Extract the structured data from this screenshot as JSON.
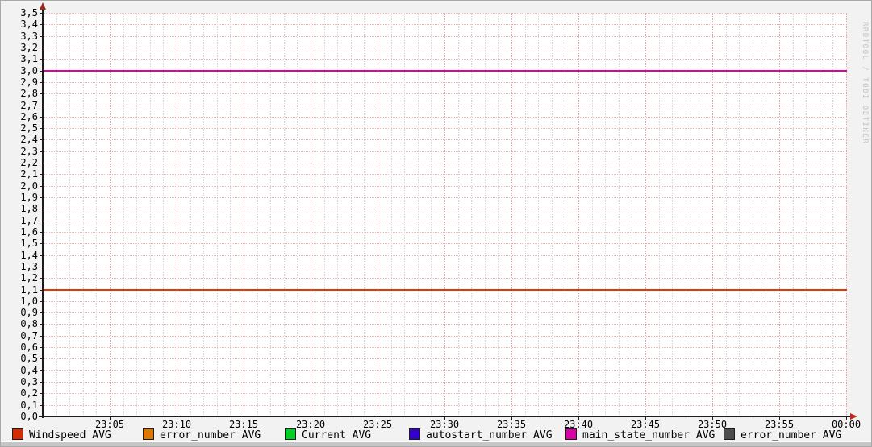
{
  "watermark": "RRDTOOL / TOBI OETIKER",
  "colors": {
    "background": "#f2f2f2",
    "plot_background": "#ffffff",
    "axis": "#1c1c1c",
    "h_grid": "#f0b2b2",
    "v_grid_minor": "#d6d6d6",
    "v_grid_major": "#efa6a6",
    "arrow": "#9e2a1c"
  },
  "chart_data": {
    "type": "line",
    "title": "",
    "xlabel": "",
    "ylabel": "",
    "grid": true,
    "legend_position": "bottom",
    "ylim": [
      0.0,
      3.5
    ],
    "y_tick_step": 0.1,
    "y_tick_labels": [
      "3,5",
      "3,4",
      "3,3",
      "3,2",
      "3,1",
      "3,0",
      "2,9",
      "2,8",
      "2,7",
      "2,6",
      "2,5",
      "2,4",
      "2,3",
      "2,2",
      "2,1",
      "2,0",
      "1,9",
      "1,8",
      "1,7",
      "1,6",
      "1,5",
      "1,4",
      "1,3",
      "1,2",
      "1,1",
      "1,0",
      "0,9",
      "0,8",
      "0,7",
      "0,6",
      "0,5",
      "0,4",
      "0,3",
      "0,2",
      "0,1",
      "0,0"
    ],
    "x_range_minutes": 60,
    "x_minor_every_min": 1,
    "x_major_every_min": 5,
    "x_tick_labels": [
      "23:05",
      "23:10",
      "23:15",
      "23:20",
      "23:25",
      "23:30",
      "23:35",
      "23:40",
      "23:45",
      "23:50",
      "23:55",
      "00:00"
    ],
    "visible_lines": [
      {
        "name": "main_state_number AVG",
        "value": 3.0,
        "color": "#e100a0"
      },
      {
        "name": "error_number AVG",
        "value": 1.1,
        "color": "#dd3c00"
      }
    ],
    "series": [
      {
        "name": "Windspeed AVG",
        "legend_color": "#d52b00",
        "visible_constant_value": null
      },
      {
        "name": "error_number AVG",
        "legend_color": "#e07800",
        "visible_constant_value": 1.1
      },
      {
        "name": "Current AVG",
        "legend_color": "#00cf24",
        "visible_constant_value": null
      },
      {
        "name": "autostart_number AVG",
        "legend_color": "#3300cc",
        "visible_constant_value": null
      },
      {
        "name": "main_state_number AVG",
        "legend_color": "#d900a5",
        "visible_constant_value": 3.0
      },
      {
        "name": "error_number AVG",
        "legend_color": "#4d4d4d",
        "visible_constant_value": null
      }
    ]
  }
}
